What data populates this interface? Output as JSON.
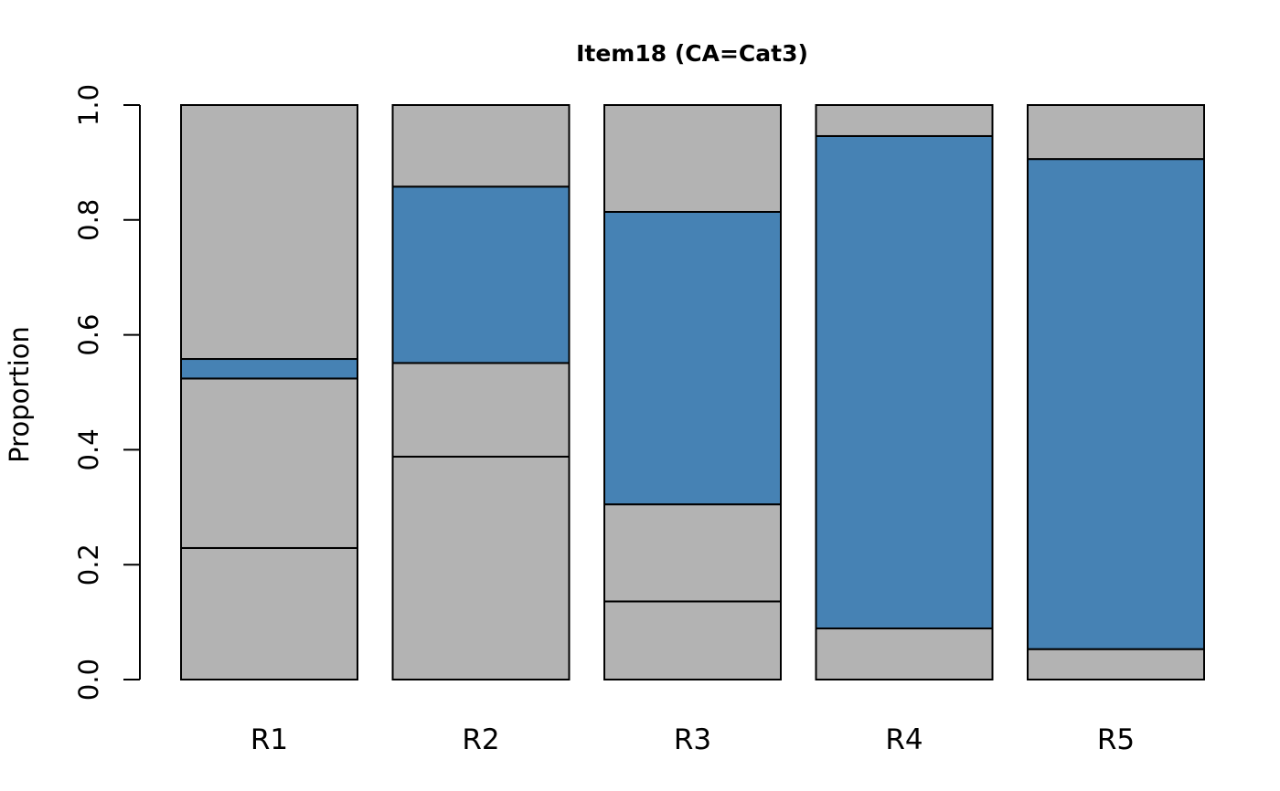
{
  "chart_data": {
    "type": "bar",
    "stacked": true,
    "title": "Item18 (CA=Cat3)",
    "xlabel": "",
    "ylabel": "Proportion",
    "ylim": [
      0,
      1
    ],
    "yticks": [
      0.0,
      0.2,
      0.4,
      0.6,
      0.8,
      1.0
    ],
    "ytick_labels": [
      "0.0",
      "0.2",
      "0.4",
      "0.6",
      "0.8",
      "1.0"
    ],
    "grid": false,
    "legend": "none",
    "categories": [
      "R1",
      "R2",
      "R3",
      "R4",
      "R5"
    ],
    "series": [
      {
        "values": [
          0.229,
          0.388,
          0.136,
          0.089,
          0.053
        ],
        "color": "#b3b3b3"
      },
      {
        "values": [
          0.295,
          0.163,
          0.169,
          0.0,
          0.0
        ],
        "color": "#b3b3b3"
      },
      {
        "values": [
          0.034,
          0.307,
          0.509,
          0.857,
          0.853
        ],
        "color": "#4682b4"
      },
      {
        "values": [
          0.442,
          0.142,
          0.186,
          0.054,
          0.094
        ],
        "color": "#b3b3b3"
      }
    ],
    "colors": {
      "distractor": "#b3b3b3",
      "correct_answer": "#4682b4",
      "stroke": "#000000"
    }
  }
}
